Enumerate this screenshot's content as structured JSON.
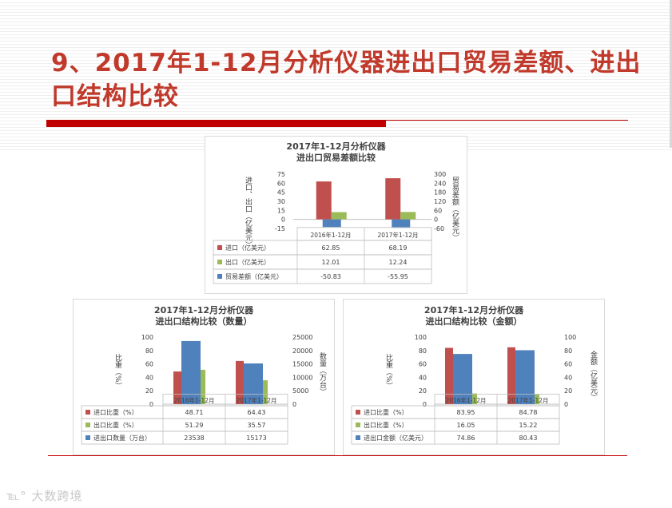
{
  "slide": {
    "title_line1": "9、2017年1-12月分析仪器进出口贸易差额、进出",
    "title_line2": "口结构比较",
    "watermark": "大数跨境",
    "accent_color": "#c00000"
  },
  "chart_data": [
    {
      "type": "bar",
      "title_line1": "2017年1-12月分析仪器",
      "title_line2": "进出口贸易差额比较",
      "categories": [
        "2016年1-12月",
        "2017年1-12月"
      ],
      "series": [
        {
          "name": "进口（亿美元）",
          "values": [
            62.85,
            68.19
          ],
          "color": "#c0504d",
          "axis": "left"
        },
        {
          "name": "出口（亿美元）",
          "values": [
            12.01,
            12.24
          ],
          "color": "#9bbb59",
          "axis": "left"
        },
        {
          "name": "贸易差额（亿美元）",
          "values": [
            -50.83,
            -55.95
          ],
          "color": "#4f81bd",
          "axis": "right"
        }
      ],
      "ylabel": "进口、出口（亿美元）",
      "y2label": "贸易差额（亿美元）",
      "ylim": [
        -15,
        75
      ],
      "y2lim": [
        -60,
        300
      ],
      "yticks": [
        "75",
        "60",
        "45",
        "30",
        "15",
        "0",
        "-15"
      ],
      "y2ticks": [
        "300",
        "240",
        "180",
        "120",
        "60",
        "0",
        "-60"
      ],
      "table": {
        "rows": [
          [
            "62.85",
            "68.19"
          ],
          [
            "12.01",
            "12.24"
          ],
          [
            "-50.83",
            "-55.95"
          ]
        ]
      }
    },
    {
      "type": "bar",
      "title_line1": "2017年1-12月分析仪器",
      "title_line2": "进出口结构比较（数量）",
      "categories": [
        "2016年1-12月",
        "2017年1-12月"
      ],
      "series": [
        {
          "name": "进口比重（%）",
          "values": [
            48.71,
            64.43
          ],
          "color": "#c0504d",
          "axis": "left"
        },
        {
          "name": "出口比重（%）",
          "values": [
            51.29,
            35.57
          ],
          "color": "#9bbb59",
          "axis": "left"
        },
        {
          "name": "进出口数量（万台）",
          "values": [
            23538,
            15173
          ],
          "color": "#4f81bd",
          "axis": "right"
        }
      ],
      "ylabel": "比重（%）",
      "y2label": "数量（万台）",
      "ylim": [
        0,
        100
      ],
      "y2lim": [
        0,
        25000
      ],
      "yticks": [
        "100",
        "80",
        "60",
        "40",
        "20",
        "0"
      ],
      "y2ticks": [
        "25000",
        "20000",
        "15000",
        "10000",
        "5000",
        "0"
      ],
      "table": {
        "rows": [
          [
            "48.71",
            "64.43"
          ],
          [
            "51.29",
            "35.57"
          ],
          [
            "23538",
            "15173"
          ]
        ]
      }
    },
    {
      "type": "bar",
      "title_line1": "2017年1-12月分析仪器",
      "title_line2": "进出口结构比较（金额）",
      "categories": [
        "2016年1-12月",
        "2017年1-12月"
      ],
      "series": [
        {
          "name": "进口比重（%）",
          "values": [
            83.95,
            84.78
          ],
          "color": "#c0504d",
          "axis": "left"
        },
        {
          "name": "出口比重（%）",
          "values": [
            16.05,
            15.22
          ],
          "color": "#9bbb59",
          "axis": "left"
        },
        {
          "name": "进出口金额（亿美元）",
          "values": [
            74.86,
            80.43
          ],
          "color": "#4f81bd",
          "axis": "right"
        }
      ],
      "ylabel": "比重（%）",
      "y2label": "金额（亿美元）",
      "ylim": [
        0,
        100
      ],
      "y2lim": [
        0,
        100
      ],
      "yticks": [
        "100",
        "80",
        "60",
        "40",
        "20",
        "0"
      ],
      "y2ticks": [
        "100",
        "80",
        "60",
        "40",
        "20",
        "0"
      ],
      "table": {
        "rows": [
          [
            "83.95",
            "84.78"
          ],
          [
            "16.05",
            "15.22"
          ],
          [
            "74.86",
            "80.43"
          ]
        ]
      }
    }
  ]
}
